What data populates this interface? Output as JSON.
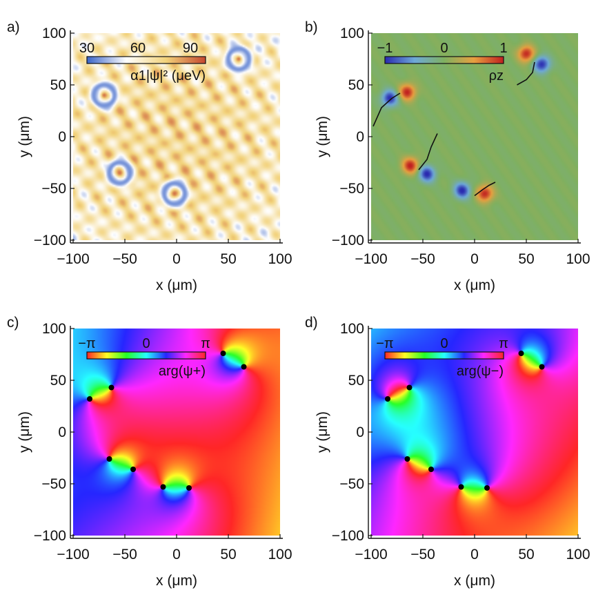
{
  "figure": {
    "x_axis_label": "x (μm)",
    "y_axis_label": "y (μm)",
    "ticks": [
      "−100",
      "−50",
      "0",
      "50",
      "100"
    ]
  },
  "chart_data": [
    {
      "panel": "a)",
      "type": "heatmap",
      "title": "",
      "xlabel": "x (μm)",
      "ylabel": "y (μm)",
      "xlim": [
        -100,
        100
      ],
      "ylim": [
        -100,
        100
      ],
      "colorbar": {
        "label": "α1|ψ|² (μeV)",
        "ticks": [
          "30",
          "60",
          "90"
        ],
        "range": [
          20,
          100
        ],
        "colors": [
          "#3a64c8",
          "#ffffff",
          "#f2d27a",
          "#c5472f"
        ]
      },
      "vortex_rings": [
        {
          "x": 60,
          "y": 75
        },
        {
          "x": -70,
          "y": 40
        },
        {
          "x": -55,
          "y": -35
        },
        {
          "x": -2,
          "y": -55
        }
      ]
    },
    {
      "panel": "b)",
      "type": "heatmap",
      "xlabel": "x (μm)",
      "ylabel": "y (μm)",
      "xlim": [
        -100,
        100
      ],
      "ylim": [
        -100,
        100
      ],
      "colorbar": {
        "label": "ρz",
        "ticks": [
          "−1",
          "0",
          "1"
        ],
        "range": [
          -1,
          1
        ],
        "colors": [
          "#2a2ab0",
          "#6ea9d8",
          "#7fb060",
          "#e8a040",
          "#c02020"
        ]
      },
      "lobes": [
        {
          "x": 50,
          "y": 80,
          "v": 1
        },
        {
          "x": 65,
          "y": 70,
          "v": -1
        },
        {
          "x": -82,
          "y": 37,
          "v": -1
        },
        {
          "x": -65,
          "y": 43,
          "v": 1
        },
        {
          "x": -62,
          "y": -28,
          "v": 1
        },
        {
          "x": -46,
          "y": -36,
          "v": -1
        },
        {
          "x": -12,
          "y": -52,
          "v": -1
        },
        {
          "x": 10,
          "y": -55,
          "v": 1
        }
      ],
      "trajectories": [
        [
          [
            -98,
            10
          ],
          [
            -90,
            28
          ],
          [
            -80,
            37
          ],
          [
            -72,
            42
          ]
        ],
        [
          [
            -54,
            -32
          ],
          [
            -46,
            -22
          ],
          [
            -42,
            -10
          ],
          [
            -36,
            3
          ]
        ],
        [
          [
            0,
            -57
          ],
          [
            8,
            -51
          ],
          [
            14,
            -47
          ],
          [
            20,
            -44
          ]
        ],
        [
          [
            41,
            50
          ],
          [
            50,
            55
          ],
          [
            56,
            62
          ],
          [
            58,
            72
          ]
        ]
      ]
    },
    {
      "panel": "c)",
      "type": "heatmap",
      "xlabel": "x (μm)",
      "ylabel": "y (μm)",
      "xlim": [
        -100,
        100
      ],
      "ylim": [
        -100,
        100
      ],
      "colorbar": {
        "label": "arg(ψ+)",
        "ticks": [
          "−π",
          "0",
          "π"
        ],
        "range": [
          -3.14159,
          3.14159
        ]
      },
      "base_phase": 2.2,
      "vortices": [
        {
          "x": -84,
          "y": 32,
          "q": 1
        },
        {
          "x": -63,
          "y": 43,
          "q": -1
        },
        {
          "x": 45,
          "y": 76,
          "q": -1
        },
        {
          "x": 65,
          "y": 63,
          "q": 1
        },
        {
          "x": -65,
          "y": -26,
          "q": -1
        },
        {
          "x": -42,
          "y": -36,
          "q": 1
        },
        {
          "x": -13,
          "y": -53,
          "q": -1
        },
        {
          "x": 12,
          "y": -54,
          "q": 1
        }
      ]
    },
    {
      "panel": "d)",
      "type": "heatmap",
      "xlabel": "x (μm)",
      "ylabel": "y (μm)",
      "xlim": [
        -100,
        100
      ],
      "ylim": [
        -100,
        100
      ],
      "colorbar": {
        "label": "arg(ψ−)",
        "ticks": [
          "−π",
          "0",
          "π"
        ],
        "range": [
          -3.14159,
          3.14159
        ]
      },
      "base_phase": 2.0,
      "vortices": [
        {
          "x": -84,
          "y": 32,
          "q": -1
        },
        {
          "x": -63,
          "y": 43,
          "q": 1
        },
        {
          "x": 45,
          "y": 76,
          "q": 1
        },
        {
          "x": 65,
          "y": 63,
          "q": -1
        },
        {
          "x": -65,
          "y": -26,
          "q": 1
        },
        {
          "x": -42,
          "y": -36,
          "q": -1
        },
        {
          "x": -13,
          "y": -53,
          "q": 1
        },
        {
          "x": 12,
          "y": -54,
          "q": -1
        }
      ]
    }
  ]
}
